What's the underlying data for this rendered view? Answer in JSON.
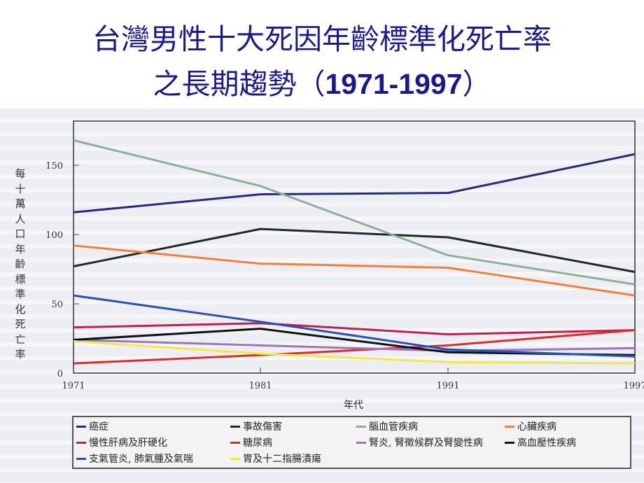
{
  "title": {
    "line1": "台灣男性十大死因年齡標準化死亡率",
    "line2_text": "之長期趨勢（",
    "line2_years": "1971-1997",
    "line2_close": "）"
  },
  "chart_data": {
    "type": "line",
    "ylabel": "每十萬人口年齡標準化死亡率",
    "xlabel": "年代",
    "categories": [
      "1971",
      "1981",
      "1991",
      "1997"
    ],
    "ylim": [
      0,
      160
    ],
    "yticks": [
      0,
      50,
      100,
      150
    ],
    "ytick_labels": [
      "0",
      "50",
      "100",
      "150"
    ],
    "grid": false,
    "legend_placement": "bottom",
    "series": [
      {
        "name": "癌症",
        "color": "#2a2a7a",
        "values": [
          116,
          129,
          130,
          158
        ]
      },
      {
        "name": "事故傷害",
        "color": "#1e2a24",
        "values": [
          77,
          104,
          98,
          73
        ]
      },
      {
        "name": "腦血管疾病",
        "color": "#8fae9c",
        "values": [
          168,
          135,
          85,
          64
        ]
      },
      {
        "name": "心臟疾病",
        "color": "#f0803a",
        "values": [
          92,
          79,
          76,
          56
        ]
      },
      {
        "name": "慢性肝病及肝硬化",
        "color": "#c0204a",
        "values": [
          33,
          36,
          28,
          31
        ]
      },
      {
        "name": "糖尿病",
        "color": "#e02a2a",
        "values": [
          7,
          13,
          20,
          31
        ]
      },
      {
        "name": "腎炎, 腎徵候群及腎變性病",
        "color": "#9a78b8",
        "values": [
          24,
          20,
          16,
          18
        ]
      },
      {
        "name": "高血壓性疾病",
        "color": "#111111",
        "values": [
          24,
          32,
          15,
          13
        ]
      },
      {
        "name": "支氣管炎, 肺氣腫及氣喘",
        "color": "#2a50b0",
        "values": [
          56,
          37,
          17,
          12
        ]
      },
      {
        "name": "胃及十二指腸潰瘍",
        "color": "#f2e84a",
        "values": [
          23,
          14,
          8,
          7
        ]
      }
    ]
  }
}
